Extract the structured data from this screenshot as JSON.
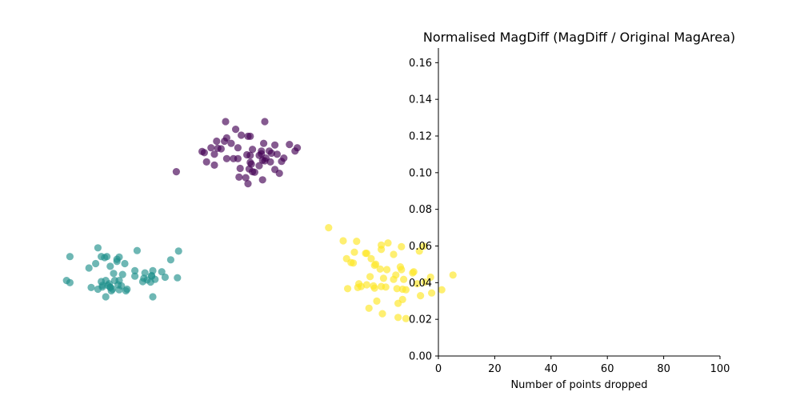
{
  "chart_data": [
    {
      "type": "scatter",
      "axes_visible": false,
      "point_alpha": 0.65,
      "series": [
        {
          "color": "#440154",
          "points": [
            [
              -0.1,
              2.22
            ],
            [
              0.25,
              2.22
            ],
            [
              -0.01,
              2.08
            ],
            [
              0.04,
              1.97
            ],
            [
              0.12,
              1.95
            ],
            [
              0.1,
              1.95
            ],
            [
              -0.09,
              1.92
            ],
            [
              -0.18,
              1.86
            ],
            [
              -0.11,
              1.86
            ],
            [
              -0.05,
              1.82
            ],
            [
              0.24,
              1.82
            ],
            [
              0.47,
              1.8
            ],
            [
              0.34,
              1.79
            ],
            [
              0.54,
              1.74
            ],
            [
              -0.23,
              1.74
            ],
            [
              0.01,
              1.74
            ],
            [
              -0.17,
              1.73
            ],
            [
              -0.14,
              1.72
            ],
            [
              0.14,
              1.71
            ],
            [
              0.22,
              1.68
            ],
            [
              0.29,
              1.68
            ],
            [
              0.52,
              1.68
            ],
            [
              -0.31,
              1.67
            ],
            [
              -0.29,
              1.65
            ],
            [
              0.31,
              1.64
            ],
            [
              0.36,
              1.62
            ],
            [
              0.22,
              1.63
            ],
            [
              -0.2,
              1.62
            ],
            [
              0.09,
              1.61
            ],
            [
              0.12,
              1.6
            ],
            [
              0.2,
              1.6
            ],
            [
              0.42,
              1.55
            ],
            [
              0.26,
              1.55
            ],
            [
              -0.09,
              1.54
            ],
            [
              -0.03,
              1.54
            ],
            [
              0.01,
              1.54
            ],
            [
              0.23,
              1.51
            ],
            [
              0.25,
              1.5
            ],
            [
              0.4,
              1.49
            ],
            [
              -0.27,
              1.48
            ],
            [
              0.3,
              1.48
            ],
            [
              0.12,
              1.47
            ],
            [
              0.13,
              1.44
            ],
            [
              -0.2,
              1.42
            ],
            [
              0.2,
              1.41
            ],
            [
              0.11,
              1.35
            ],
            [
              0.03,
              1.36
            ],
            [
              0.34,
              1.34
            ],
            [
              -0.54,
              1.3
            ],
            [
              0.14,
              1.3
            ],
            [
              0.16,
              1.29
            ],
            [
              0.38,
              1.27
            ],
            [
              0.02,
              1.2
            ],
            [
              0.08,
              1.19
            ],
            [
              0.23,
              1.15
            ],
            [
              0.1,
              1.08
            ]
          ]
        },
        {
          "color": "#21918c",
          "points": [
            [
              -1.24,
              -0.1
            ],
            [
              -0.89,
              -0.15
            ],
            [
              -0.52,
              -0.16
            ],
            [
              -1.49,
              -0.26
            ],
            [
              -1.16,
              -0.26
            ],
            [
              -1.21,
              -0.26
            ],
            [
              -1.05,
              -0.27
            ],
            [
              -1.18,
              -0.28
            ],
            [
              -1.07,
              -0.31
            ],
            [
              -0.59,
              -0.32
            ],
            [
              -1.07,
              -0.35
            ],
            [
              -1.26,
              -0.39
            ],
            [
              -1.0,
              -0.39
            ],
            [
              -1.13,
              -0.44
            ],
            [
              -1.32,
              -0.47
            ],
            [
              -0.75,
              -0.52
            ],
            [
              -0.91,
              -0.52
            ],
            [
              -0.67,
              -0.54
            ],
            [
              -0.82,
              -0.56
            ],
            [
              -1.1,
              -0.57
            ],
            [
              -1.02,
              -0.59
            ],
            [
              -0.76,
              -0.61
            ],
            [
              -0.76,
              -0.62
            ],
            [
              -0.91,
              -0.62
            ],
            [
              -0.64,
              -0.64
            ],
            [
              -0.53,
              -0.65
            ],
            [
              -0.83,
              -0.66
            ],
            [
              -0.73,
              -0.68
            ],
            [
              -0.8,
              -0.69
            ],
            [
              -1.09,
              -0.7
            ],
            [
              -1.17,
              -0.7
            ],
            [
              -1.52,
              -0.7
            ],
            [
              -1.05,
              -0.7
            ],
            [
              -1.21,
              -0.72
            ],
            [
              -1.49,
              -0.74
            ],
            [
              -0.77,
              -0.73
            ],
            [
              -0.84,
              -0.72
            ],
            [
              -1.14,
              -0.76
            ],
            [
              -1.06,
              -0.78
            ],
            [
              -1.15,
              -0.79
            ],
            [
              -1.2,
              -0.79
            ],
            [
              -1.03,
              -0.8
            ],
            [
              -1.13,
              -0.82
            ],
            [
              -1.3,
              -0.83
            ],
            [
              -1.13,
              -0.83
            ],
            [
              -1.2,
              -0.82
            ],
            [
              -1.24,
              -0.86
            ],
            [
              -1.11,
              -0.86
            ],
            [
              -0.98,
              -0.86
            ],
            [
              -1.05,
              -0.87
            ],
            [
              -1.12,
              -0.89
            ],
            [
              -0.99,
              -0.89
            ],
            [
              -1.17,
              -1.0
            ],
            [
              -0.75,
              -1.0
            ]
          ]
        },
        {
          "color": "#fde725",
          "points": [
            [
              0.82,
              0.27
            ],
            [
              0.95,
              0.03
            ],
            [
              1.07,
              0.02
            ],
            [
              1.35,
              -0.01
            ],
            [
              1.29,
              -0.05
            ],
            [
              1.47,
              -0.08
            ],
            [
              1.29,
              -0.13
            ],
            [
              1.67,
              -0.07
            ],
            [
              1.63,
              -0.16
            ],
            [
              1.05,
              -0.18
            ],
            [
              1.15,
              -0.2
            ],
            [
              1.16,
              -0.2
            ],
            [
              1.4,
              -0.22
            ],
            [
              1.2,
              -0.3
            ],
            [
              0.98,
              -0.3
            ],
            [
              1.02,
              -0.37
            ],
            [
              1.04,
              -0.38
            ],
            [
              1.24,
              -0.4
            ],
            [
              1.46,
              -0.45
            ],
            [
              1.23,
              -0.42
            ],
            [
              1.28,
              -0.49
            ],
            [
              1.47,
              -0.5
            ],
            [
              1.58,
              -0.54
            ],
            [
              1.34,
              -0.5
            ],
            [
              1.57,
              -0.56
            ],
            [
              1.42,
              -0.6
            ],
            [
              1.19,
              -0.63
            ],
            [
              1.31,
              -0.66
            ],
            [
              1.4,
              -0.68
            ],
            [
              1.49,
              -0.68
            ],
            [
              1.73,
              -0.64
            ],
            [
              1.93,
              -0.6
            ],
            [
              1.68,
              -0.73
            ],
            [
              1.61,
              -0.76
            ],
            [
              1.09,
              -0.76
            ],
            [
              1.16,
              -0.78
            ],
            [
              1.22,
              -0.8
            ],
            [
              1.11,
              -0.81
            ],
            [
              1.29,
              -0.81
            ],
            [
              1.33,
              -0.82
            ],
            [
              1.08,
              -0.83
            ],
            [
              1.23,
              -0.84
            ],
            [
              1.43,
              -0.85
            ],
            [
              1.48,
              -0.86
            ],
            [
              0.99,
              -0.85
            ],
            [
              1.51,
              -0.87
            ],
            [
              1.83,
              -0.87
            ],
            [
              1.74,
              -0.93
            ],
            [
              1.64,
              -0.98
            ],
            [
              1.48,
              -1.05
            ],
            [
              1.25,
              -1.08
            ],
            [
              1.44,
              -1.12
            ],
            [
              1.18,
              -1.21
            ],
            [
              1.3,
              -1.31
            ],
            [
              1.44,
              -1.38
            ],
            [
              1.51,
              -1.4
            ]
          ]
        }
      ]
    },
    {
      "type": "line",
      "title": "Normalised MagDiff (MagDiff / Original MagArea)",
      "xlabel": "Number of points dropped",
      "ylabel": "",
      "xlim": [
        0,
        100
      ],
      "ylim": [
        0,
        0.168
      ],
      "x_ticks": [
        "0",
        "20",
        "40",
        "60",
        "80",
        "100"
      ],
      "y_ticks": [
        "0.00",
        "0.02",
        "0.04",
        "0.06",
        "0.08",
        "0.10",
        "0.12",
        "0.14",
        "0.16"
      ],
      "spines": "left-bottom",
      "grid": false,
      "series": []
    }
  ]
}
